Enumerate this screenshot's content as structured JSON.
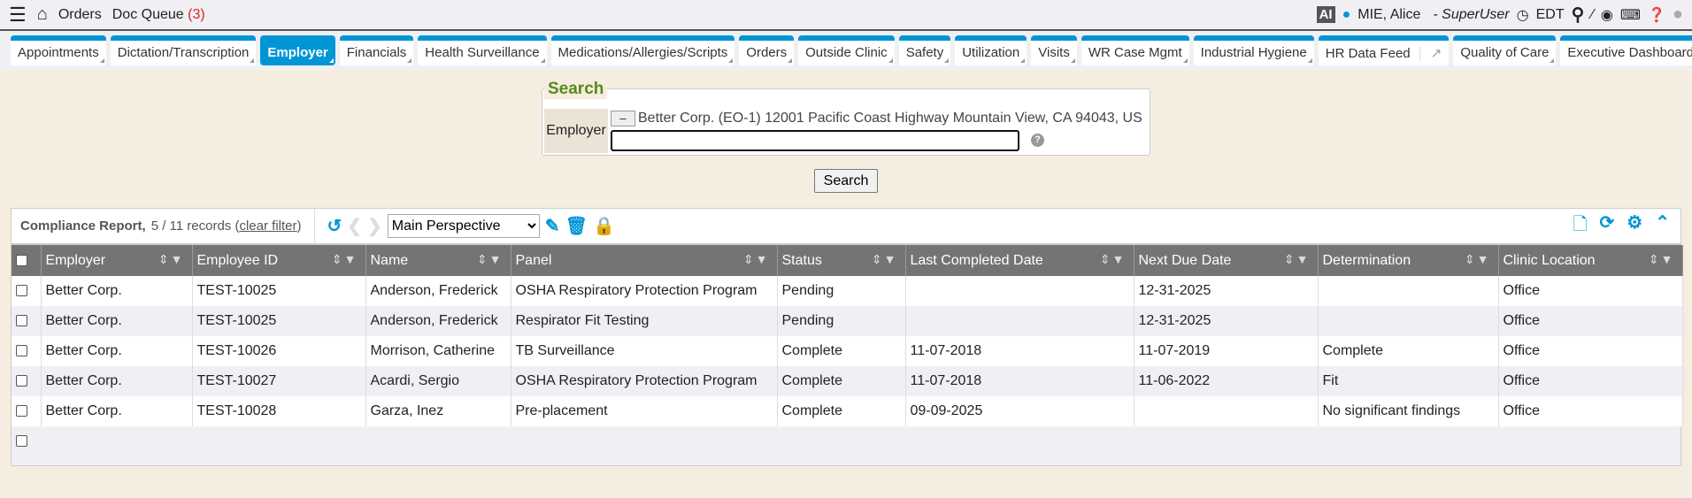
{
  "topbar": {
    "menu_icon": "hamburger-icon",
    "home_icon": "home-icon",
    "orders": "Orders",
    "doc_queue": "Doc Queue",
    "doc_queue_count": "(3)",
    "ai": "AI",
    "user": "MIE, Alice",
    "role": "- SuperUser",
    "timezone": "EDT"
  },
  "tabs": [
    "Appointments",
    "Dictation/Transcription",
    "Employer",
    "Financials",
    "Health Surveillance",
    "Medications/Allergies/Scripts",
    "Orders",
    "Outside Clinic",
    "Safety",
    "Utilization",
    "Visits",
    "WR Case Mgmt",
    "Industrial Hygiene",
    "HR Data Feed",
    "Quality of Care",
    "Executive Dashboard"
  ],
  "active_tab": "Employer",
  "search": {
    "legend": "Search",
    "label": "Employer",
    "minus": "–",
    "selected": "Better Corp. (EO-1) 12001 Pacific Coast Highway Mountain View, CA 94043, US",
    "help": "?",
    "button": "Search",
    "input_value": ""
  },
  "report": {
    "title": "Compliance Report,",
    "count": "5 / 11 records",
    "clear_filter": "clear filter",
    "perspective": "Main Perspective"
  },
  "columns": [
    "Employer",
    "Employee ID",
    "Name",
    "Panel",
    "Status",
    "Last Completed Date",
    "Next Due Date",
    "Determination",
    "Clinic Location"
  ],
  "rows": [
    [
      "Better Corp.",
      "TEST-10025",
      "Anderson, Frederick",
      "OSHA Respiratory Protection Program",
      "Pending",
      "",
      "12-31-2025",
      "",
      "Office"
    ],
    [
      "Better Corp.",
      "TEST-10025",
      "Anderson, Frederick",
      "Respirator Fit Testing",
      "Pending",
      "",
      "12-31-2025",
      "",
      "Office"
    ],
    [
      "Better Corp.",
      "TEST-10026",
      "Morrison, Catherine",
      "TB Surveillance",
      "Complete",
      "11-07-2018",
      "11-07-2019",
      "Complete",
      "Office"
    ],
    [
      "Better Corp.",
      "TEST-10027",
      "Acardi, Sergio",
      "OSHA Respiratory Protection Program",
      "Complete",
      "11-07-2018",
      "11-06-2022",
      "Fit",
      "Office"
    ],
    [
      "Better Corp.",
      "TEST-10028",
      "Garza, Inez",
      "Pre-placement",
      "Complete",
      "09-09-2025",
      "",
      "No significant findings",
      "Office"
    ]
  ],
  "colors": {
    "accent": "#0096d6",
    "header": "#747474",
    "legend": "#5a8a1a",
    "background": "#f5eddf"
  }
}
